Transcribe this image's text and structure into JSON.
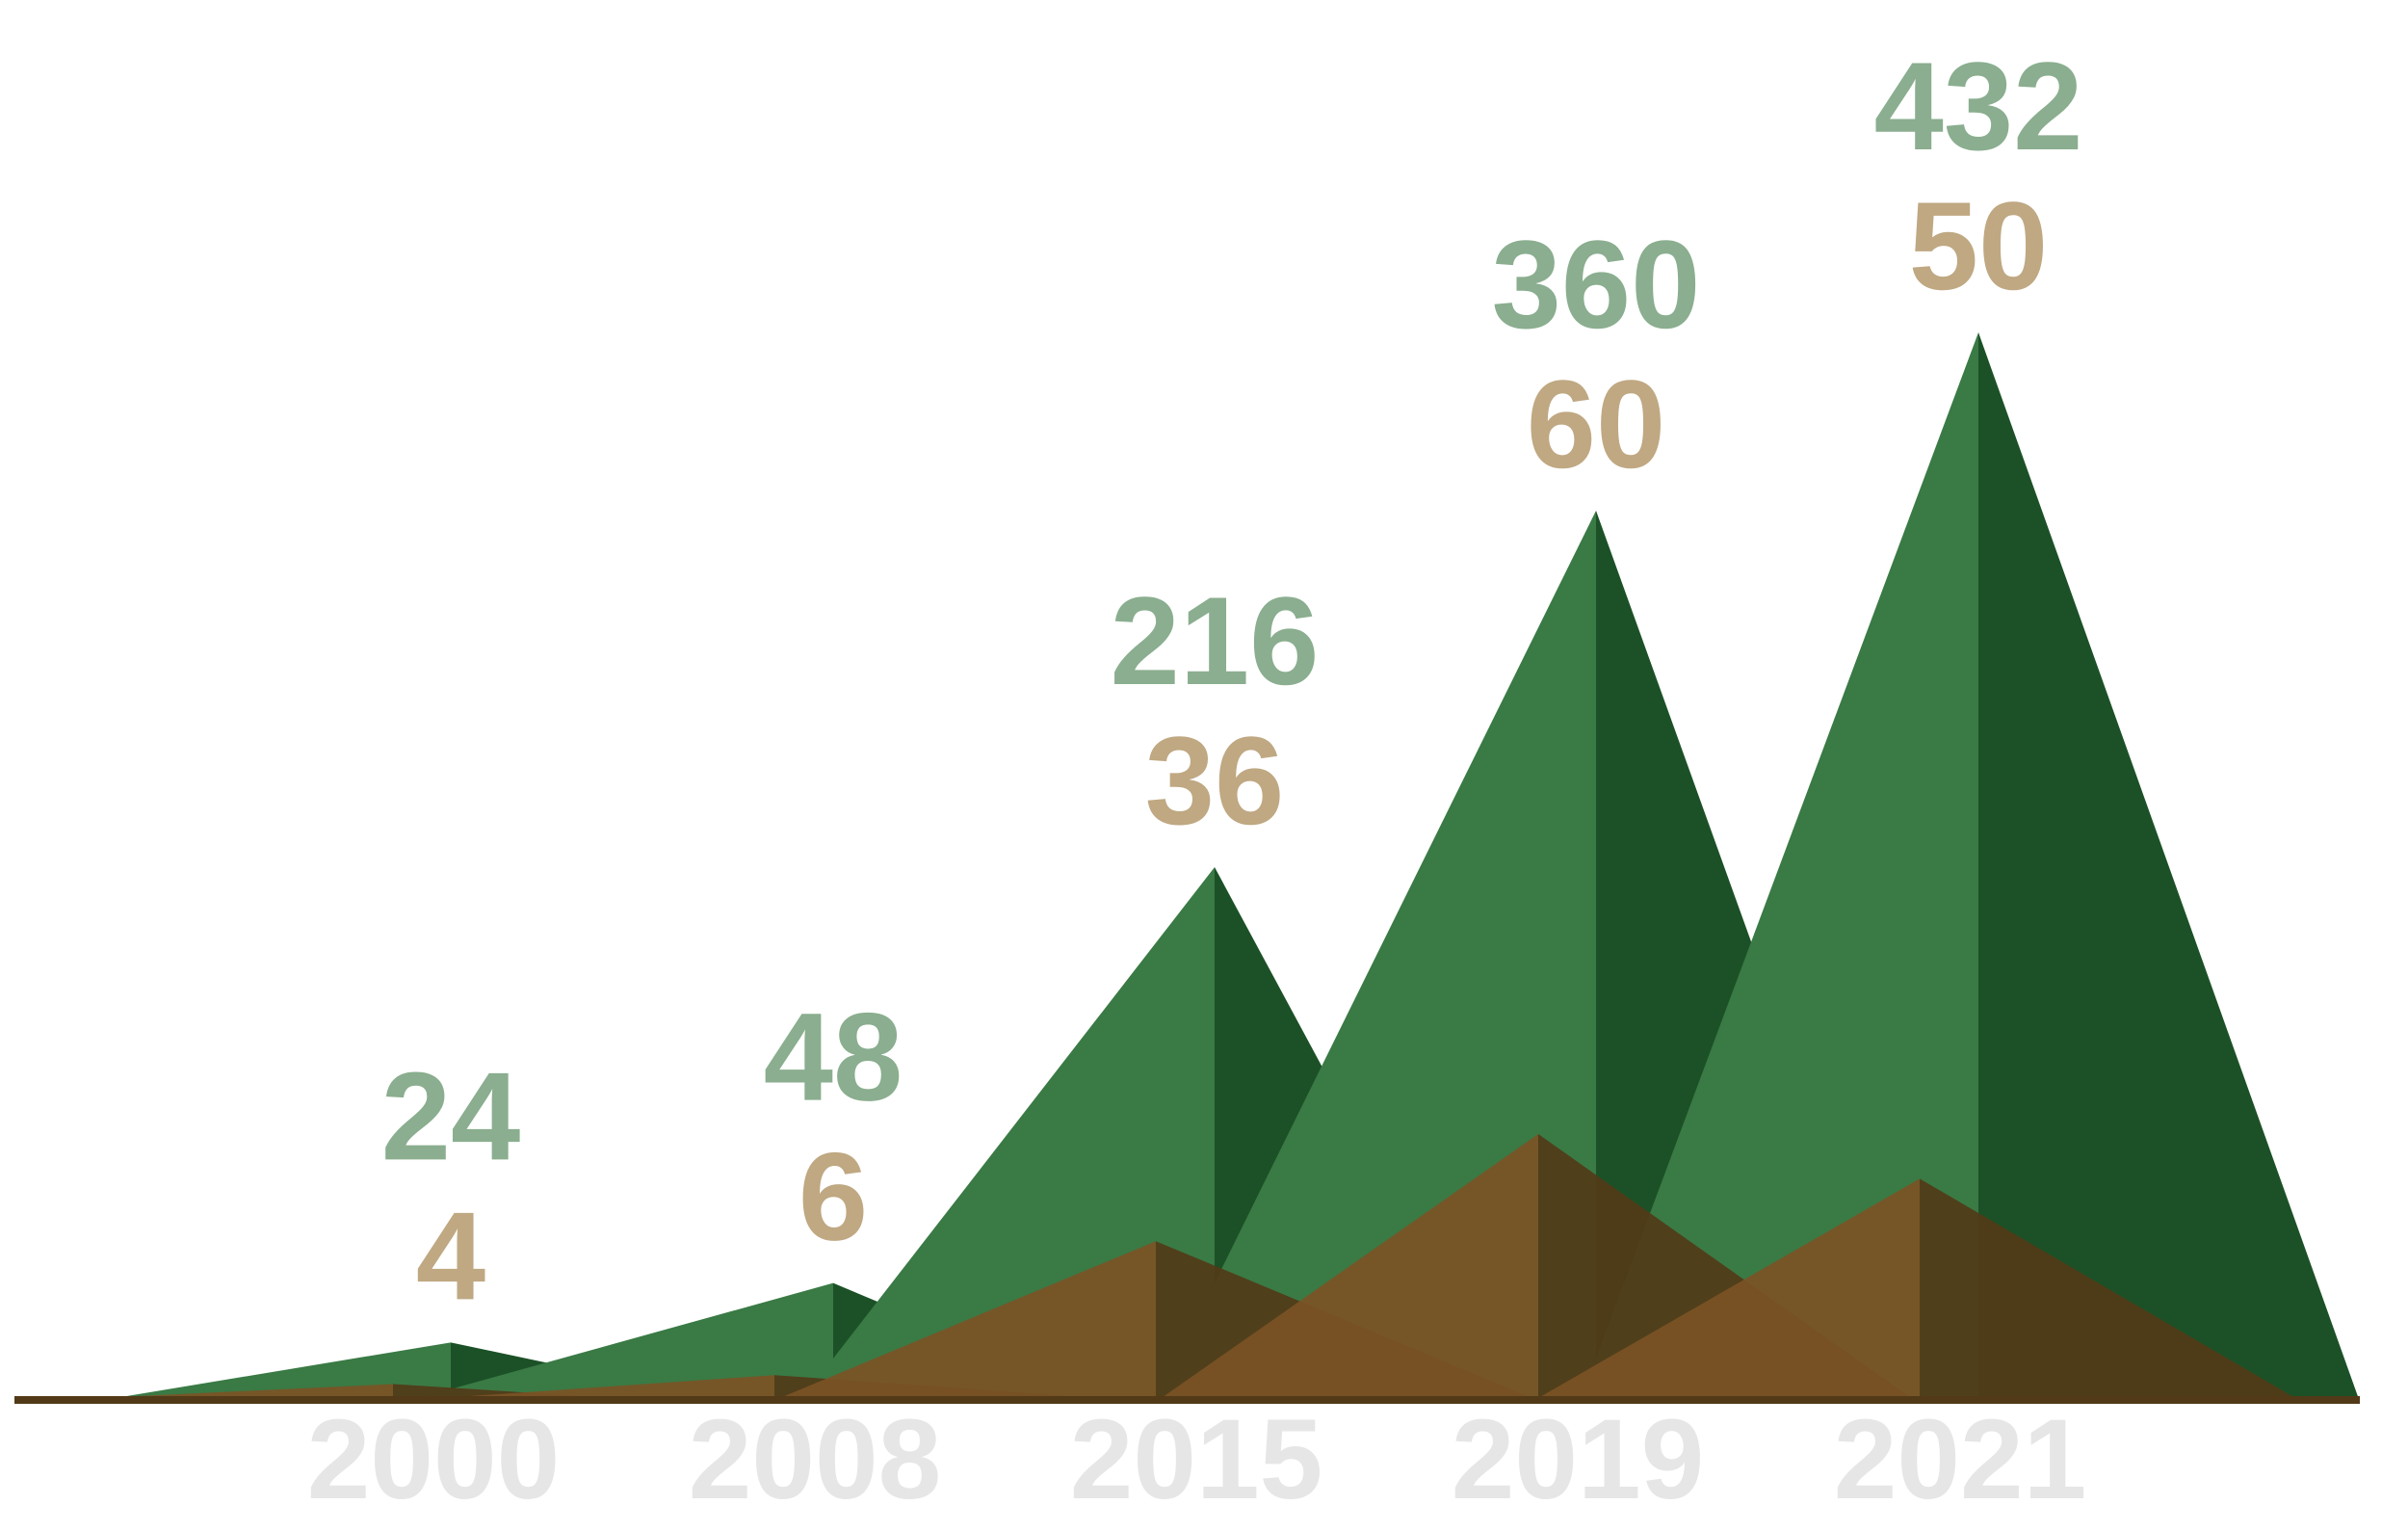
{
  "chart_data": {
    "type": "area",
    "categories": [
      "2000",
      "2008",
      "2015",
      "2019",
      "2021"
    ],
    "series": [
      {
        "values": [
          24,
          48,
          216,
          360,
          432
        ],
        "color": "#3a7a45",
        "shade_color": "#1c5127",
        "label_color": "#8aae8f"
      },
      {
        "values": [
          4,
          6,
          36,
          60,
          50
        ],
        "color": "#7b5325",
        "shade_color": "#523a18",
        "label_color": "#bfa882"
      }
    ],
    "xlabel_color": "#e6e6e6",
    "title": "",
    "xlabel": "",
    "ylabel": ""
  }
}
